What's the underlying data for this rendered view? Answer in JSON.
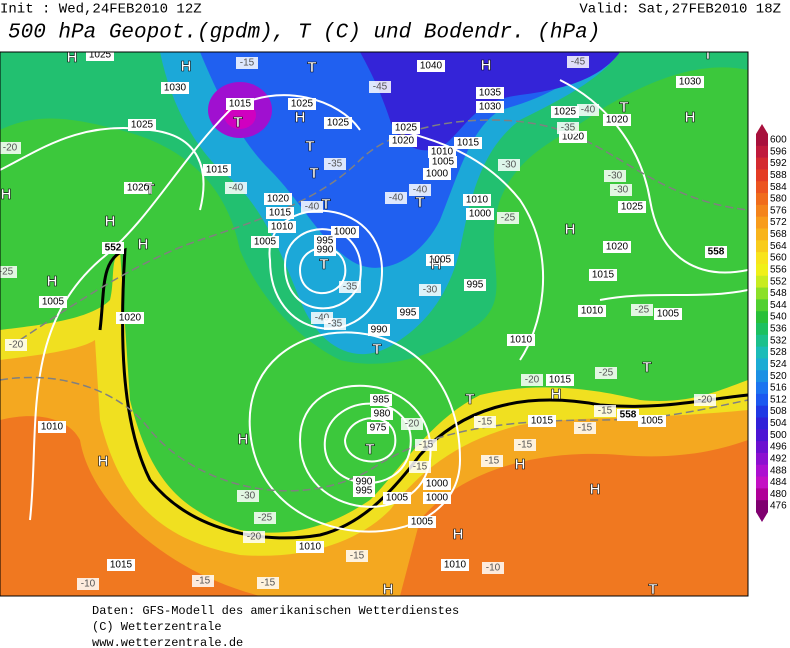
{
  "header": {
    "init": "Init : Wed,24FEB2010 12Z",
    "valid": "Valid: Sat,27FEB2010 18Z",
    "title": "500 hPa Geopot.(gpdm), T (C) und Bodendr. (hPa)"
  },
  "colorbar": {
    "labels": [
      600,
      596,
      592,
      588,
      584,
      580,
      576,
      572,
      568,
      564,
      560,
      556,
      552,
      548,
      544,
      540,
      536,
      532,
      528,
      524,
      520,
      516,
      512,
      508,
      504,
      500,
      496,
      492,
      488,
      484,
      480,
      476
    ],
    "colors": [
      "#a8103c",
      "#c01a3c",
      "#d42a30",
      "#e43c24",
      "#ec5420",
      "#f06c1c",
      "#f4841c",
      "#f89c1c",
      "#f8b41c",
      "#f8cc1c",
      "#f8e41c",
      "#f0f018",
      "#c8ec20",
      "#8ce028",
      "#50d030",
      "#28c038",
      "#1cc060",
      "#1cc08c",
      "#1cbcb8",
      "#1cacd4",
      "#1c90e4",
      "#1c74f0",
      "#1c58f0",
      "#2038e4",
      "#3020d8",
      "#4c14d4",
      "#6c10d0",
      "#8c10d0",
      "#ac10d0",
      "#c410c4",
      "#b00098",
      "#800070"
    ]
  },
  "map": {
    "pressure_labels": [
      "1025",
      "1030",
      "1015",
      "1025",
      "1015",
      "1020",
      "1020",
      "1015",
      "1010",
      "1005",
      "1000",
      "995",
      "990",
      "1025",
      "1025",
      "1025",
      "1020",
      "1015",
      "1010",
      "1005",
      "1000",
      "1010",
      "1000",
      "1040",
      "1035",
      "1030",
      "1025",
      "1020",
      "1020",
      "1025",
      "1020",
      "1015",
      "1010",
      "1005",
      "1005",
      "995",
      "995",
      "990",
      "1010",
      "1015",
      "1015",
      "1005",
      "985",
      "980",
      "975",
      "990",
      "995",
      "1000",
      "1000",
      "1005",
      "1005",
      "1010",
      "1010",
      "1015",
      "1010",
      "1005",
      "1020",
      "1030"
    ],
    "temperature_labels": [
      "-15",
      "-45",
      "-45",
      "-40",
      "-35",
      "-35",
      "-40",
      "-40",
      "-40",
      "-40",
      "-25",
      "-30",
      "-30",
      "-30",
      "-35",
      "-30",
      "-40",
      "-35",
      "-25",
      "-20",
      "-20",
      "-25",
      "-25",
      "-20",
      "-15",
      "-15",
      "-20",
      "-15",
      "-15",
      "-15",
      "-15",
      "-15",
      "-25",
      "-20",
      "-15",
      "-15",
      "-15",
      "-10",
      "-10",
      "-30",
      "-20"
    ],
    "contour_labels": [
      "552",
      "558",
      "558"
    ],
    "systems": [
      "H",
      "H",
      "T",
      "H",
      "T",
      "H",
      "T",
      "T",
      "T",
      "H",
      "T",
      "H",
      "T",
      "H",
      "T",
      "H",
      "H",
      "T",
      "T",
      "T",
      "T",
      "H",
      "T",
      "H",
      "H",
      "H",
      "H",
      "T",
      "H",
      "H",
      "H",
      "H",
      "T"
    ]
  },
  "footer": [
    "Daten: GFS-Modell des amerikanischen Wetterdienstes",
    "(C) Wetterzentrale",
    "www.wetterzentrale.de"
  ]
}
